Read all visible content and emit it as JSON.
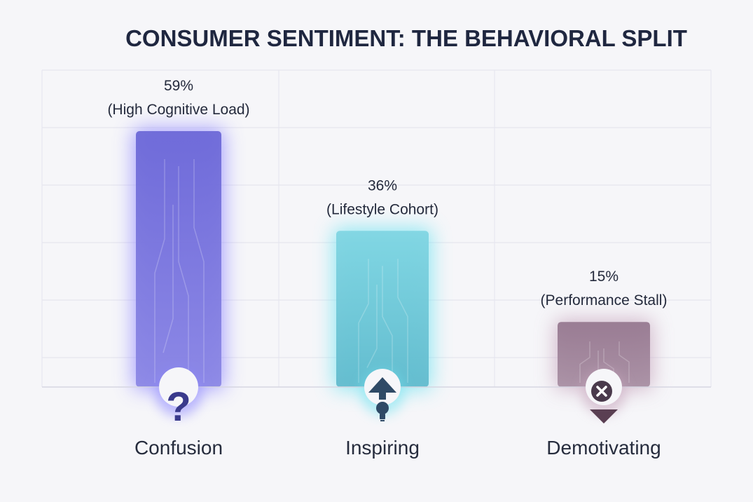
{
  "chart_data": {
    "type": "bar",
    "title": "CONSUMER SENTIMENT: THE BEHAVIORAL SPLIT",
    "categories": [
      "Confusion",
      "Inspiring",
      "Demotivating"
    ],
    "values": [
      59,
      36,
      15
    ],
    "unit": "%",
    "sublabels": [
      "(High Cognitive Load)",
      "(Lifestyle Cohort)",
      "(Performance Stall)"
    ],
    "icons": [
      "question-mark-icon",
      "arrow-up-lightbulb-icon",
      "x-arrow-down-icon"
    ],
    "colors": [
      "#6f6bdc",
      "#6fcbd9",
      "#9a7d93"
    ],
    "glow_colors": [
      "#8f87ff",
      "#6fe3f0",
      "#c7a6bd"
    ],
    "ylim": [
      0,
      60
    ],
    "xlabel": "",
    "ylabel": "",
    "grid": true
  }
}
